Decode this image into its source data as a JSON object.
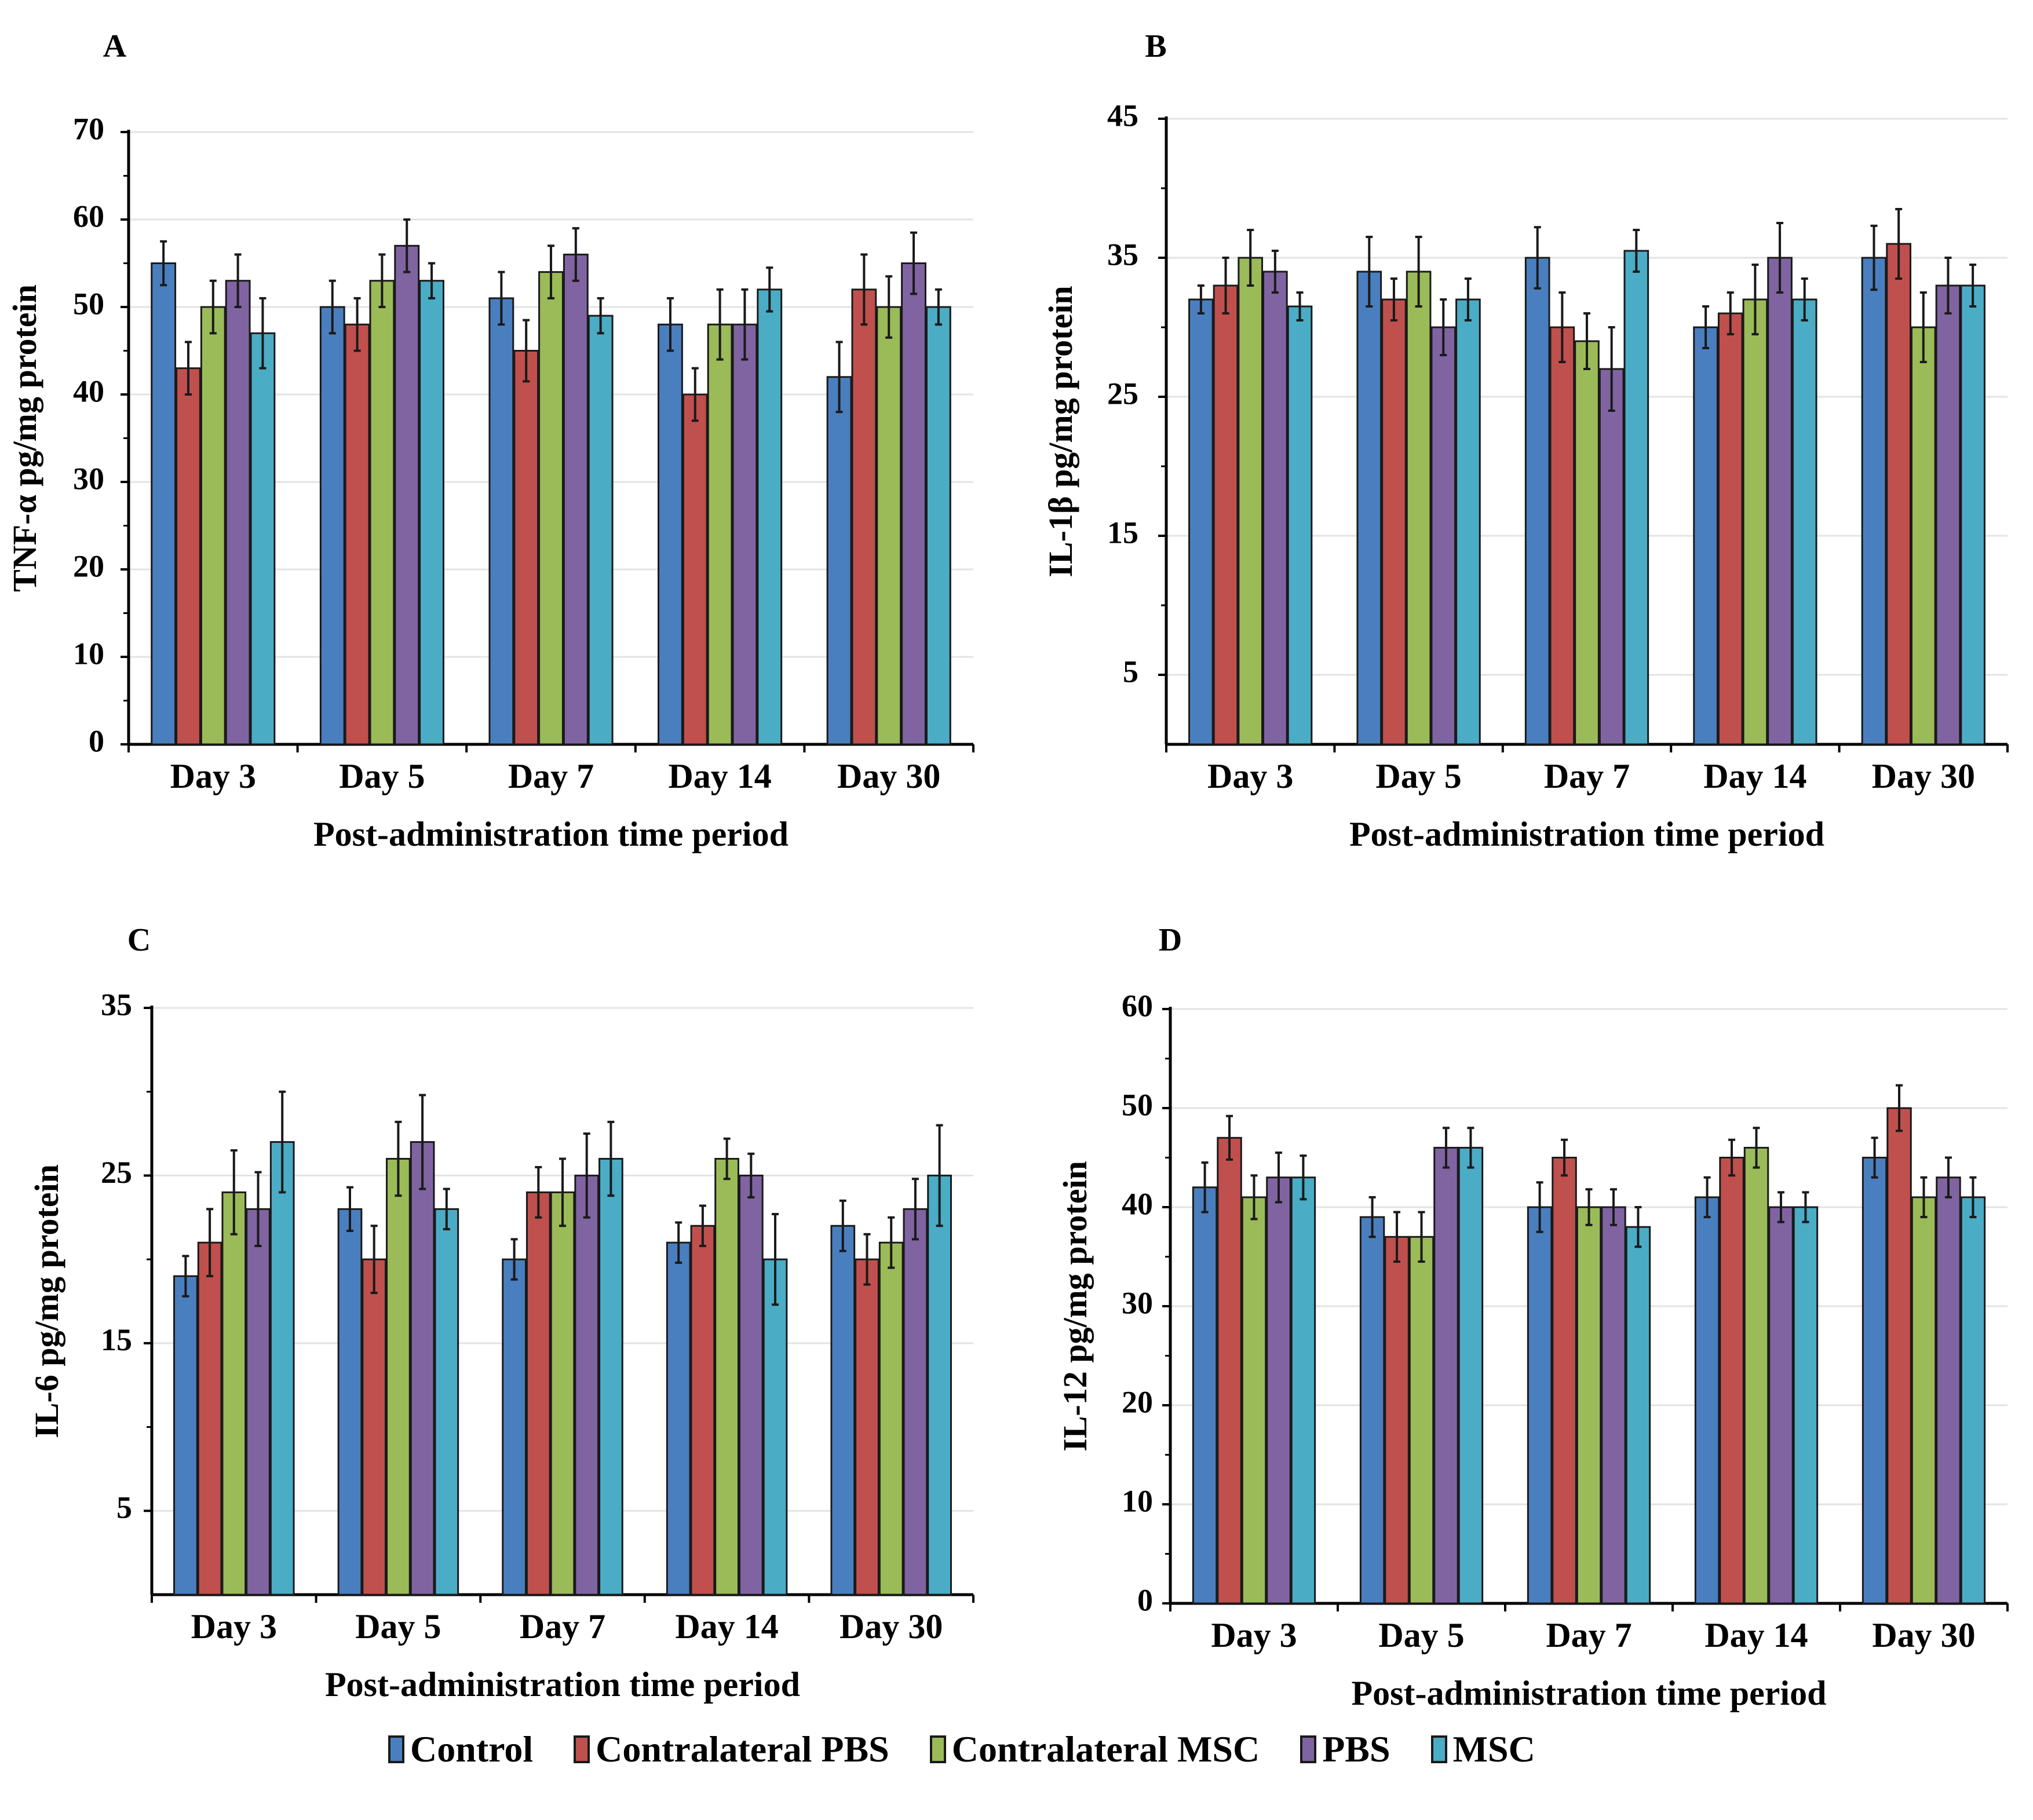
{
  "legend": [
    {
      "label": "Control",
      "color": "#4a7fbf"
    },
    {
      "label": "Contralateral PBS",
      "color": "#c0504d"
    },
    {
      "label": "Contralateral MSC",
      "color": "#9bbb59"
    },
    {
      "label": "PBS",
      "color": "#8064a2"
    },
    {
      "label": "MSC",
      "color": "#4bacc6"
    }
  ],
  "chart_data": [
    {
      "panel": "A",
      "type": "bar",
      "title": "",
      "xlabel": "Post-administration time period",
      "ylabel": "TNF-α pg/mg protein",
      "categories": [
        "Day 3",
        "Day 5",
        "Day 7",
        "Day 14",
        "Day 30"
      ],
      "ylim": [
        0,
        70
      ],
      "yticks": [
        0,
        10,
        20,
        30,
        40,
        50,
        60,
        70
      ],
      "series": [
        {
          "name": "Control",
          "values": [
            55,
            50,
            51,
            48,
            42
          ],
          "errors": [
            2.5,
            3,
            3,
            3,
            4
          ]
        },
        {
          "name": "Contralateral PBS",
          "values": [
            43,
            48,
            45,
            40,
            52
          ],
          "errors": [
            3,
            3,
            3.5,
            3,
            4
          ]
        },
        {
          "name": "Contralateral MSC",
          "values": [
            50,
            53,
            54,
            48,
            50
          ],
          "errors": [
            3,
            3,
            3,
            4,
            3.5
          ]
        },
        {
          "name": "PBS",
          "values": [
            53,
            57,
            56,
            48,
            55
          ],
          "errors": [
            3,
            3,
            3,
            4,
            3.5
          ]
        },
        {
          "name": "MSC",
          "values": [
            47,
            53,
            49,
            52,
            50
          ],
          "errors": [
            4,
            2,
            2,
            2.5,
            2
          ]
        }
      ]
    },
    {
      "panel": "B",
      "type": "bar",
      "title": "",
      "xlabel": "Post-administration time period",
      "ylabel": "IL-1β pg/mg protein",
      "categories": [
        "Day 3",
        "Day 5",
        "Day 7",
        "Day 14",
        "Day 30"
      ],
      "ylim": [
        0,
        45
      ],
      "yticks": [
        5,
        15,
        25,
        35,
        45
      ],
      "series": [
        {
          "name": "Control",
          "values": [
            32,
            34,
            35,
            30,
            35
          ],
          "errors": [
            1,
            2.5,
            2.2,
            1.5,
            2.3
          ]
        },
        {
          "name": "Contralateral PBS",
          "values": [
            33,
            32,
            30,
            31,
            36
          ],
          "errors": [
            2,
            1.5,
            2.5,
            1.5,
            2.5
          ]
        },
        {
          "name": "Contralateral MSC",
          "values": [
            35,
            34,
            29,
            32,
            30
          ],
          "errors": [
            2,
            2.5,
            2,
            2.5,
            2.5
          ]
        },
        {
          "name": "PBS",
          "values": [
            34,
            30,
            27,
            35,
            33
          ],
          "errors": [
            1.5,
            2,
            3,
            2.5,
            2
          ]
        },
        {
          "name": "MSC",
          "values": [
            31.5,
            32,
            35.5,
            32,
            33
          ],
          "errors": [
            1,
            1.5,
            1.5,
            1.5,
            1.5
          ]
        }
      ]
    },
    {
      "panel": "C",
      "type": "bar",
      "title": "",
      "xlabel": "Post-administration time period",
      "ylabel": "IL-6 pg/mg protein",
      "categories": [
        "Day 3",
        "Day 5",
        "Day 7",
        "Day 14",
        "Day 30"
      ],
      "ylim": [
        0,
        35
      ],
      "yticks": [
        5,
        15,
        25,
        35
      ],
      "series": [
        {
          "name": "Control",
          "values": [
            19,
            23,
            20,
            21,
            22
          ],
          "errors": [
            1.2,
            1.3,
            1.2,
            1.2,
            1.5
          ]
        },
        {
          "name": "Contralateral PBS",
          "values": [
            21,
            20,
            24,
            22,
            20
          ],
          "errors": [
            2,
            2,
            1.5,
            1.2,
            1.5
          ]
        },
        {
          "name": "Contralateral MSC",
          "values": [
            24,
            26,
            24,
            26,
            21
          ],
          "errors": [
            2.5,
            2.2,
            2,
            1.2,
            1.5
          ]
        },
        {
          "name": "PBS",
          "values": [
            23,
            27,
            25,
            25,
            23
          ],
          "errors": [
            2.2,
            2.8,
            2.5,
            1.3,
            1.8
          ]
        },
        {
          "name": "MSC",
          "values": [
            27,
            23,
            26,
            20,
            25
          ],
          "errors": [
            3,
            1.2,
            2.2,
            2.7,
            3
          ]
        }
      ]
    },
    {
      "panel": "D",
      "type": "bar",
      "title": "",
      "xlabel": "Post-administration time period",
      "ylabel": "IL-12 pg/mg protein",
      "categories": [
        "Day 3",
        "Day 5",
        "Day 7",
        "Day 14",
        "Day 30"
      ],
      "ylim": [
        0,
        60
      ],
      "yticks": [
        0,
        10,
        20,
        30,
        40,
        50,
        60
      ],
      "series": [
        {
          "name": "Control",
          "values": [
            42,
            39,
            40,
            41,
            45
          ],
          "errors": [
            2.5,
            2,
            2.5,
            2,
            2
          ]
        },
        {
          "name": "Contralateral PBS",
          "values": [
            47,
            37,
            45,
            45,
            50
          ],
          "errors": [
            2.2,
            2.5,
            1.8,
            1.8,
            2.3
          ]
        },
        {
          "name": "Contralateral MSC",
          "values": [
            41,
            37,
            40,
            46,
            41
          ],
          "errors": [
            2.2,
            2.5,
            1.8,
            2,
            2
          ]
        },
        {
          "name": "PBS",
          "values": [
            43,
            46,
            40,
            40,
            43
          ],
          "errors": [
            2.5,
            2,
            1.8,
            1.5,
            2
          ]
        },
        {
          "name": "MSC",
          "values": [
            43,
            46,
            38,
            40,
            41
          ],
          "errors": [
            2.2,
            2,
            2,
            1.5,
            2
          ]
        }
      ]
    }
  ]
}
